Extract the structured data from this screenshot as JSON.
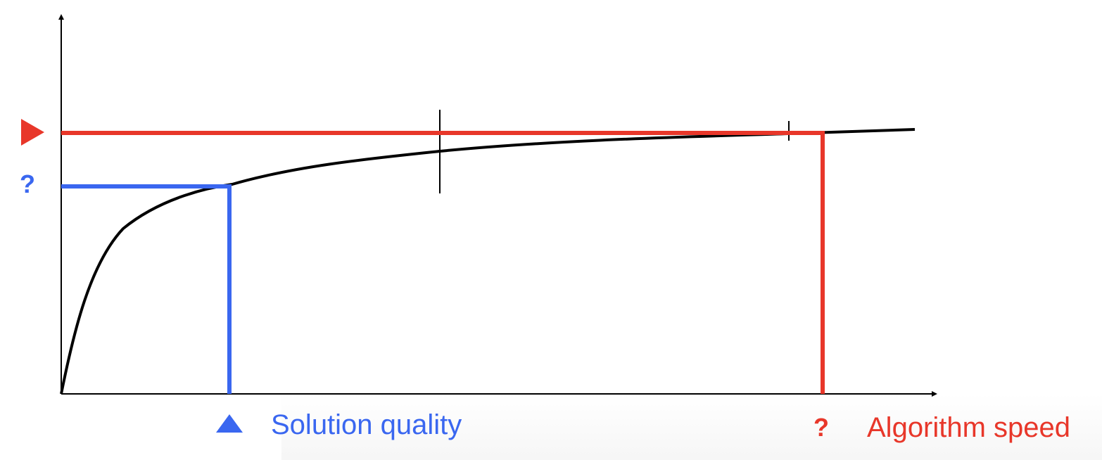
{
  "colors": {
    "blue": "#3a67f0",
    "red": "#e8372a",
    "curve": "#000000",
    "axis": "#000000"
  },
  "diagram": {
    "y_marker_triangle": "right-pointing triangle",
    "y_unknown_mark": "?",
    "x_unknown_mark": "?",
    "x_marker_triangle": "up-pointing triangle",
    "quality_label": "Solution quality",
    "speed_label": "Algorithm speed"
  }
}
